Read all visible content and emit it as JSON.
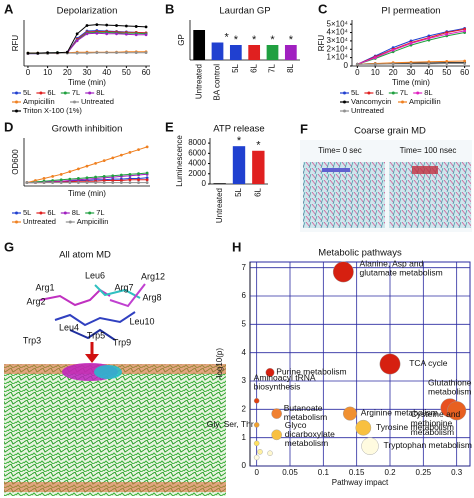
{
  "chart_data": [
    {
      "panel": "A",
      "type": "line",
      "title": "Depolarization",
      "ylabel": "RFU",
      "xlabel": "Time (min)",
      "x": [
        0,
        5,
        10,
        15,
        20,
        25,
        30,
        35,
        40,
        45,
        50,
        55,
        60
      ],
      "xlim": [
        -2,
        62
      ],
      "xticks": [
        0,
        10,
        20,
        30,
        40,
        50,
        60
      ],
      "ylim": [
        0,
        100
      ],
      "legend": "below",
      "series": [
        {
          "name": "5L",
          "color": "#2040d0",
          "values": [
            27,
            27,
            28,
            28,
            29,
            60,
            76,
            77,
            76,
            75,
            74,
            73,
            72
          ]
        },
        {
          "name": "6L",
          "color": "#e02020",
          "values": [
            27,
            28,
            28,
            28,
            29,
            58,
            74,
            75,
            75,
            74,
            73,
            73,
            72
          ]
        },
        {
          "name": "7L",
          "color": "#20a040",
          "values": [
            28,
            28,
            28,
            29,
            29,
            56,
            72,
            73,
            73,
            72,
            71,
            71,
            70
          ]
        },
        {
          "name": "8L",
          "color": "#a020c0",
          "values": [
            27,
            27,
            28,
            28,
            29,
            55,
            70,
            71,
            70,
            70,
            69,
            68,
            68
          ]
        },
        {
          "name": "Ampicillin",
          "color": "#f08020",
          "values": [
            28,
            28,
            28,
            28,
            29,
            30,
            30,
            30,
            30,
            30,
            31,
            31,
            31
          ]
        },
        {
          "name": "Untreated",
          "color": "#909090",
          "values": [
            27,
            27,
            27,
            28,
            28,
            28,
            28,
            29,
            29,
            29,
            29,
            29,
            29
          ]
        },
        {
          "name": "Triton X-100 (1%)",
          "color": "#000000",
          "values": [
            28,
            28,
            29,
            29,
            30,
            70,
            88,
            90,
            89,
            88,
            87,
            86,
            85
          ]
        }
      ]
    },
    {
      "panel": "B",
      "type": "bar",
      "title": "Laurdan GP",
      "ylabel": "GP",
      "categories": [
        "Untreated",
        "BA control",
        "5L",
        "6L",
        "7L",
        "8L"
      ],
      "values": [
        0.6,
        0.35,
        0.3,
        0.3,
        0.3,
        0.3
      ],
      "colors": [
        "#000000",
        "#2040d0",
        "#2040d0",
        "#e02020",
        "#20a040",
        "#a020c0"
      ],
      "significance": [
        null,
        "*",
        "*",
        "*",
        "*",
        "*"
      ],
      "ylim": [
        0,
        0.8
      ]
    },
    {
      "panel": "C",
      "type": "line",
      "title": "PI permeation",
      "ylabel": "RFU",
      "xlabel": "Time (min)",
      "x": [
        0,
        10,
        20,
        30,
        40,
        50,
        60
      ],
      "xlim": [
        -3,
        63
      ],
      "xticks": [
        0,
        10,
        20,
        30,
        40,
        50,
        60
      ],
      "ylim": [
        0,
        55000
      ],
      "yticks": [
        {
          "value": 0,
          "label": "0"
        },
        {
          "value": 10000,
          "label": "1×10⁴"
        },
        {
          "value": 20000,
          "label": "2×10⁴"
        },
        {
          "value": 30000,
          "label": "3×10⁴"
        },
        {
          "value": 40000,
          "label": "4×10⁴"
        },
        {
          "value": 50000,
          "label": "5×10⁴"
        }
      ],
      "legend": "below",
      "series": [
        {
          "name": "5L",
          "color": "#2040d0",
          "values": [
            2000,
            12000,
            22000,
            30000,
            36000,
            41000,
            45000
          ]
        },
        {
          "name": "6L",
          "color": "#e02020",
          "values": [
            2000,
            11000,
            20000,
            28000,
            34000,
            40000,
            44000
          ]
        },
        {
          "name": "7L",
          "color": "#20a040",
          "values": [
            2000,
            9000,
            17000,
            25000,
            31000,
            36000,
            40000
          ]
        },
        {
          "name": "8L",
          "color": "#e020c0",
          "values": [
            2000,
            10000,
            19000,
            27000,
            33000,
            38000,
            42000
          ]
        },
        {
          "name": "Vancomycin",
          "color": "#000000",
          "values": [
            2000,
            3000,
            3000,
            3500,
            3500,
            4000,
            4000
          ]
        },
        {
          "name": "Ampicillin",
          "color": "#f08020",
          "values": [
            2000,
            3000,
            4000,
            4500,
            5000,
            5500,
            6000
          ]
        },
        {
          "name": "Untreated",
          "color": "#909090",
          "values": [
            2000,
            2000,
            2500,
            2500,
            2500,
            3000,
            3000
          ]
        }
      ]
    },
    {
      "panel": "D",
      "type": "line",
      "title": "Growth inhibition",
      "ylabel": "OD600",
      "xlabel": "Time (min)",
      "x": [
        0,
        30,
        60,
        90,
        120,
        150,
        180,
        210,
        240,
        270,
        300,
        330,
        360,
        390,
        420
      ],
      "xlim": [
        -10,
        430
      ],
      "ylim": [
        0,
        0.7
      ],
      "legend": "below",
      "series": [
        {
          "name": "5L",
          "color": "#2040d0",
          "values": [
            0.05,
            0.05,
            0.06,
            0.06,
            0.07,
            0.07,
            0.08,
            0.08,
            0.09,
            0.09,
            0.1,
            0.1,
            0.11,
            0.11,
            0.12
          ]
        },
        {
          "name": "6L",
          "color": "#e02020",
          "values": [
            0.05,
            0.05,
            0.05,
            0.06,
            0.06,
            0.06,
            0.07,
            0.07,
            0.07,
            0.08,
            0.08,
            0.08,
            0.09,
            0.09,
            0.09
          ]
        },
        {
          "name": "8L",
          "color": "#a020c0",
          "values": [
            0.05,
            0.06,
            0.06,
            0.07,
            0.07,
            0.08,
            0.09,
            0.1,
            0.11,
            0.12,
            0.13,
            0.14,
            0.15,
            0.16,
            0.17
          ]
        },
        {
          "name": "7L",
          "color": "#20a040",
          "values": [
            0.05,
            0.06,
            0.07,
            0.08,
            0.09,
            0.1,
            0.11,
            0.12,
            0.13,
            0.14,
            0.15,
            0.16,
            0.17,
            0.18,
            0.19
          ]
        },
        {
          "name": "Untreated",
          "color": "#f08020",
          "values": [
            0.05,
            0.08,
            0.11,
            0.14,
            0.17,
            0.21,
            0.25,
            0.29,
            0.33,
            0.37,
            0.41,
            0.45,
            0.49,
            0.53,
            0.57
          ]
        },
        {
          "name": "Ampicillin",
          "color": "#909090",
          "values": [
            0.05,
            0.05,
            0.05,
            0.05,
            0.05,
            0.05,
            0.05,
            0.05,
            0.05,
            0.05,
            0.05,
            0.05,
            0.05,
            0.05,
            0.05
          ]
        }
      ]
    },
    {
      "panel": "E",
      "type": "bar",
      "title": "ATP release",
      "ylabel": "Luminescence",
      "categories": [
        "Untreated",
        "5L",
        "6L"
      ],
      "values": [
        150,
        7400,
        6500
      ],
      "colors": [
        "#000000",
        "#2040d0",
        "#e02020"
      ],
      "significance": [
        null,
        "*",
        "*"
      ],
      "ylim": [
        0,
        9000
      ],
      "yticks": [
        0,
        2000,
        4000,
        6000,
        8000
      ]
    },
    {
      "panel": "H",
      "type": "scatter",
      "title": "Metabolic pathways",
      "ylabel": "-log10(p)",
      "xlabel": "Pathway impact",
      "xlim": [
        -0.01,
        0.32
      ],
      "xticks": [
        0,
        0.05,
        0.1,
        0.15,
        0.2,
        0.25,
        0.3
      ],
      "ylim": [
        0,
        7.2
      ],
      "yticks": [
        0,
        1,
        2,
        3,
        4,
        5,
        6,
        7
      ],
      "grid": true,
      "grid_color": "#2a2aa0",
      "x": [
        0.13,
        0.02,
        0.2,
        0.0,
        0.29,
        0.3,
        0.03,
        0.14,
        0.0,
        0.16,
        0.03,
        0.17,
        0.0,
        0.005,
        0.02,
        0.0
      ],
      "y": [
        6.85,
        3.3,
        3.6,
        2.3,
        2.05,
        1.95,
        1.85,
        1.85,
        1.45,
        1.35,
        1.1,
        0.7,
        0.8,
        0.5,
        0.45,
        0.3
      ],
      "sizes": [
        12,
        5,
        12,
        3,
        11,
        11,
        6,
        8,
        3,
        9,
        6,
        10,
        3,
        3,
        3,
        3
      ],
      "colors": [
        "#d62010",
        "#d62010",
        "#d62010",
        "#e04010",
        "#e85020",
        "#e86020",
        "#f08030",
        "#f09030",
        "#f0a030",
        "#f8c040",
        "#f8c040",
        "#fffbe0",
        "#ffe060",
        "#fff0a0",
        "#fff8d0",
        "#fffbe0"
      ],
      "labels": [
        "Alanine, Asp and glutamate metabolism",
        "Purine metabolism",
        "TCA cycle",
        "Aminoacyl tRNA biosynthesis",
        "Glutathione metabolism",
        "Cysteine and methionine metabolism",
        "Butanoate metabolism",
        "Arginine metabolism",
        "Gly, Ser, Thr",
        "Tyrosine metabolism",
        "Glyco dicarboxylate metabolism",
        "Tryptophan metabolism",
        null,
        null,
        null,
        null
      ]
    }
  ],
  "images": [
    {
      "panel": "F",
      "title": "Coarse grain MD",
      "labels": [
        "Time= 0 sec",
        "Time= 100 nsec"
      ]
    },
    {
      "panel": "G",
      "title": "All atom MD",
      "residues": [
        "Arg1",
        "Leu6",
        "Arg12",
        "Arg7",
        "Arg2",
        "Arg8",
        "Leu10",
        "Leu4",
        "Trp5",
        "Trp3",
        "Trp9"
      ]
    }
  ]
}
